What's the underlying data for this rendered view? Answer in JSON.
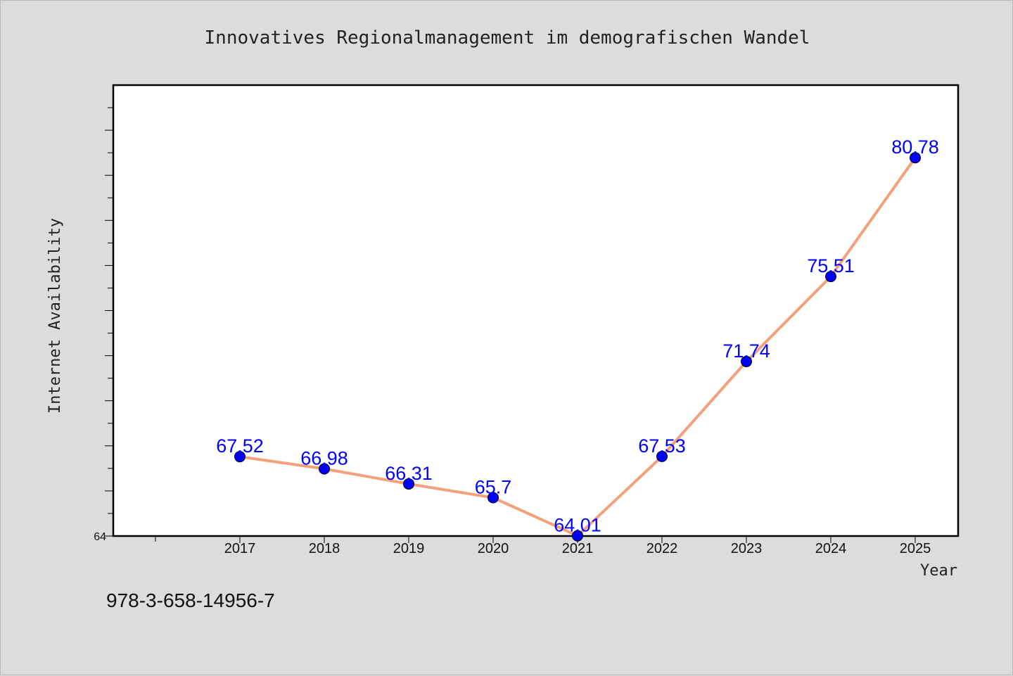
{
  "chart_data": {
    "type": "line",
    "title": "Innovatives Regionalmanagement im demografischen Wandel",
    "xlabel": "Year",
    "ylabel": "Internet Availability",
    "x": [
      "2017",
      "2018",
      "2019",
      "2020",
      "2021",
      "2022",
      "2023",
      "2024",
      "2025"
    ],
    "series": [
      {
        "values": [
          67.52,
          66.98,
          66.31,
          65.7,
          64.01,
          67.53,
          71.74,
          75.51,
          80.78
        ],
        "labels": [
          "67.52",
          "66.98",
          "66.31",
          "65.7",
          "64.01",
          "67.53",
          "71.74",
          "75.51",
          "80.78"
        ],
        "line_color": "#f4a07a",
        "marker_color": "#0000ff"
      }
    ],
    "ylim": [
      64,
      84
    ],
    "y_tick_labels": [
      "64"
    ],
    "grid": false,
    "legend": "none"
  },
  "footer": {
    "isbn": "978-3-658-14956-7"
  }
}
